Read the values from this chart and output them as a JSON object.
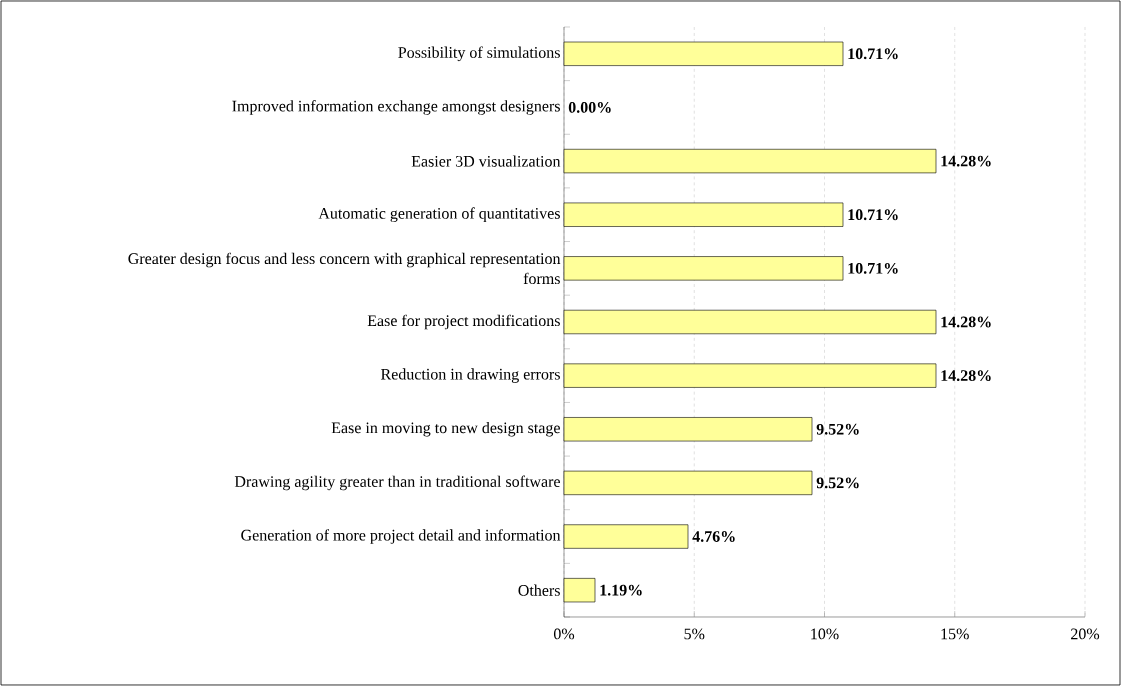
{
  "chart_data": {
    "type": "bar",
    "orientation": "horizontal",
    "categories": [
      "Possibility of simulations",
      "Improved information exchange amongst designers",
      "Easier 3D visualization",
      "Automatic generation of quantitatives",
      "Greater design focus and less concern with graphical representation forms",
      "Ease for project modifications",
      "Reduction in drawing errors",
      "Ease in moving to new design stage",
      "Drawing agility greater than in traditional software",
      "Generation of more project detail and information",
      "Others"
    ],
    "values": [
      10.71,
      0.0,
      14.28,
      10.71,
      10.71,
      14.28,
      14.28,
      9.52,
      9.52,
      4.76,
      1.19
    ],
    "value_labels": [
      "10.71%",
      "0.00%",
      "14.28%",
      "10.71%",
      "10.71%",
      "14.28%",
      "14.28%",
      "9.52%",
      "9.52%",
      "4.76%",
      "1.19%"
    ],
    "color": "#ffff99",
    "xlim": [
      0,
      20
    ],
    "xticks": [
      {
        "value": 0,
        "label": "0%"
      },
      {
        "value": 5,
        "label": "5%"
      },
      {
        "value": 10,
        "label": "10%"
      },
      {
        "value": 15,
        "label": "15%"
      },
      {
        "value": 20,
        "label": "20%"
      }
    ],
    "grid": "x"
  }
}
